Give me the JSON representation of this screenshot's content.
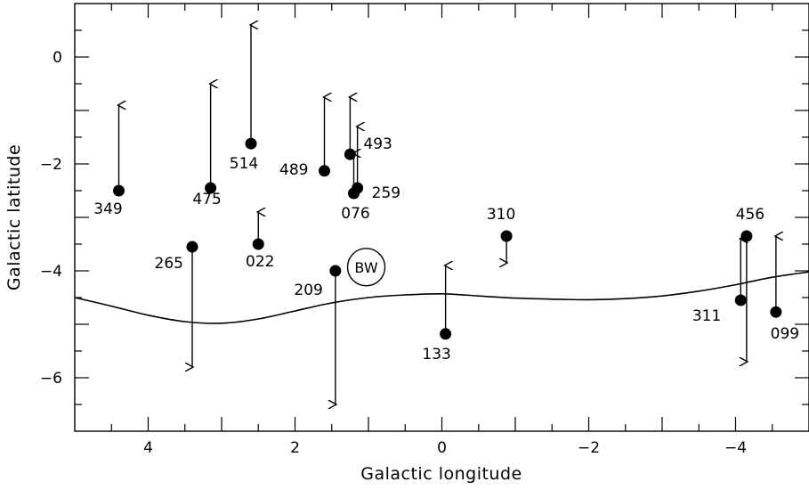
{
  "chart_data": {
    "type": "scatter",
    "xlabel": "Galactic longitude",
    "ylabel": "Galactic latitude",
    "xlim": [
      5,
      -5
    ],
    "ylim": [
      -7,
      1
    ],
    "x_reversed": true,
    "grid": false,
    "x_ticks": [
      4,
      2,
      0,
      -2,
      -4
    ],
    "x_tick_labels": [
      "4",
      "2",
      "0",
      "−2",
      "−4"
    ],
    "y_ticks": [
      0,
      -2,
      -4,
      -6
    ],
    "y_tick_labels": [
      "0",
      "−2",
      "−4",
      "−6"
    ],
    "points": [
      {
        "label": "349",
        "x": 4.4,
        "y": -2.5,
        "arrow_to": -0.9
      },
      {
        "label": "475",
        "x": 3.15,
        "y": -2.45,
        "arrow_to": -0.5
      },
      {
        "label": "514",
        "x": 2.6,
        "y": -1.62,
        "arrow_to": 0.6
      },
      {
        "label": "265",
        "x": 3.4,
        "y": -3.55,
        "arrow_to": -5.8
      },
      {
        "label": "022",
        "x": 2.5,
        "y": -3.5,
        "arrow_to": -2.9
      },
      {
        "label": "489",
        "x": 1.6,
        "y": -2.13,
        "arrow_to": -0.75
      },
      {
        "label": "493",
        "x": 1.25,
        "y": -1.82,
        "arrow_to": -0.75
      },
      {
        "label": "076",
        "x": 1.2,
        "y": -2.55,
        "arrow_to": -1.8
      },
      {
        "label": "259",
        "x": 1.15,
        "y": -2.45,
        "arrow_to": -1.3
      },
      {
        "label": "209",
        "x": 1.45,
        "y": -4.0,
        "arrow_to": -6.5
      },
      {
        "label": "310",
        "x": -0.88,
        "y": -3.35,
        "arrow_to": -3.85
      },
      {
        "label": "133",
        "x": -0.05,
        "y": -5.18,
        "arrow_to": -3.9
      },
      {
        "label": "456",
        "x": -4.15,
        "y": -3.35,
        "arrow_to": -5.7
      },
      {
        "label": "311",
        "x": -4.07,
        "y": -4.55,
        "arrow_to": -3.4
      },
      {
        "label": "099",
        "x": -4.55,
        "y": -4.77,
        "arrow_to": -3.35
      }
    ],
    "annotations": [
      {
        "text": "BW",
        "x": 1.03,
        "y": -3.93
      }
    ],
    "curve": {
      "x": [
        5.0,
        4.5,
        4.0,
        3.5,
        3.0,
        2.5,
        2.0,
        1.5,
        1.0,
        0.5,
        0.0,
        -0.5,
        -1.0,
        -1.5,
        -2.0,
        -2.5,
        -3.0,
        -3.5,
        -4.0,
        -4.5,
        -5.0
      ],
      "y": [
        -4.5,
        -4.66,
        -4.83,
        -4.95,
        -4.98,
        -4.9,
        -4.75,
        -4.6,
        -4.5,
        -4.45,
        -4.43,
        -4.47,
        -4.51,
        -4.53,
        -4.54,
        -4.52,
        -4.47,
        -4.38,
        -4.26,
        -4.12,
        -4.02
      ]
    }
  }
}
